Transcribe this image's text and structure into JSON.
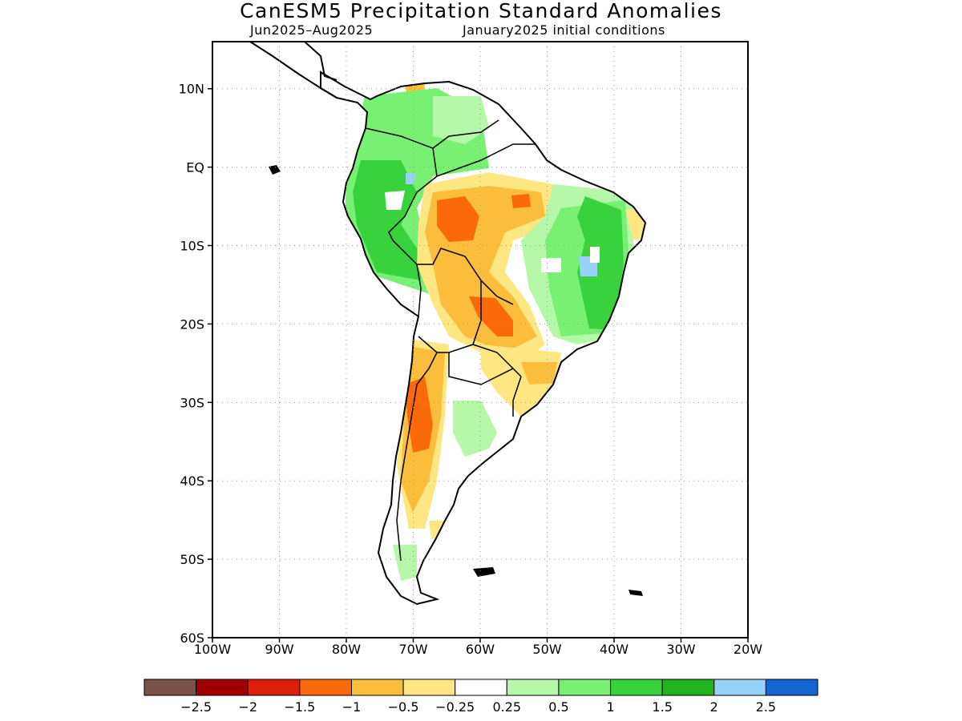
{
  "title": "CanESM5 Precipitation Standard Anomalies",
  "subtitle_left": "Jun2025–Aug2025",
  "subtitle_right": "January2025 initial conditions",
  "map": {
    "lon_range": [
      -100,
      -20
    ],
    "lat_range": [
      -60,
      16
    ],
    "lat_ticks": [
      {
        "value": 10,
        "label": "10N"
      },
      {
        "value": 0,
        "label": "EQ"
      },
      {
        "value": -10,
        "label": "10S"
      },
      {
        "value": -20,
        "label": "20S"
      },
      {
        "value": -30,
        "label": "30S"
      },
      {
        "value": -40,
        "label": "40S"
      },
      {
        "value": -50,
        "label": "50S"
      },
      {
        "value": -60,
        "label": "60S"
      }
    ],
    "lon_ticks": [
      {
        "value": -100,
        "label": "100W"
      },
      {
        "value": -90,
        "label": "90W"
      },
      {
        "value": -80,
        "label": "80W"
      },
      {
        "value": -70,
        "label": "70W"
      },
      {
        "value": -60,
        "label": "60W"
      },
      {
        "value": -50,
        "label": "50W"
      },
      {
        "value": -40,
        "label": "40W"
      },
      {
        "value": -30,
        "label": "30W"
      },
      {
        "value": -20,
        "label": "20W"
      }
    ]
  },
  "colorbar": {
    "colors": [
      "#7a5246",
      "#a00000",
      "#dc1e0a",
      "#fa6a0a",
      "#fbbe3c",
      "#fee682",
      "#ffffff",
      "#b4f8a8",
      "#78f073",
      "#37d23c",
      "#1eb41e",
      "#96d2fa",
      "#1464d2"
    ],
    "labels": [
      "−2.5",
      "−2",
      "−1.5",
      "−1",
      "−0.5",
      "−0.25",
      "0.25",
      "0.5",
      "1",
      "1.5",
      "2",
      "2.5"
    ]
  }
}
